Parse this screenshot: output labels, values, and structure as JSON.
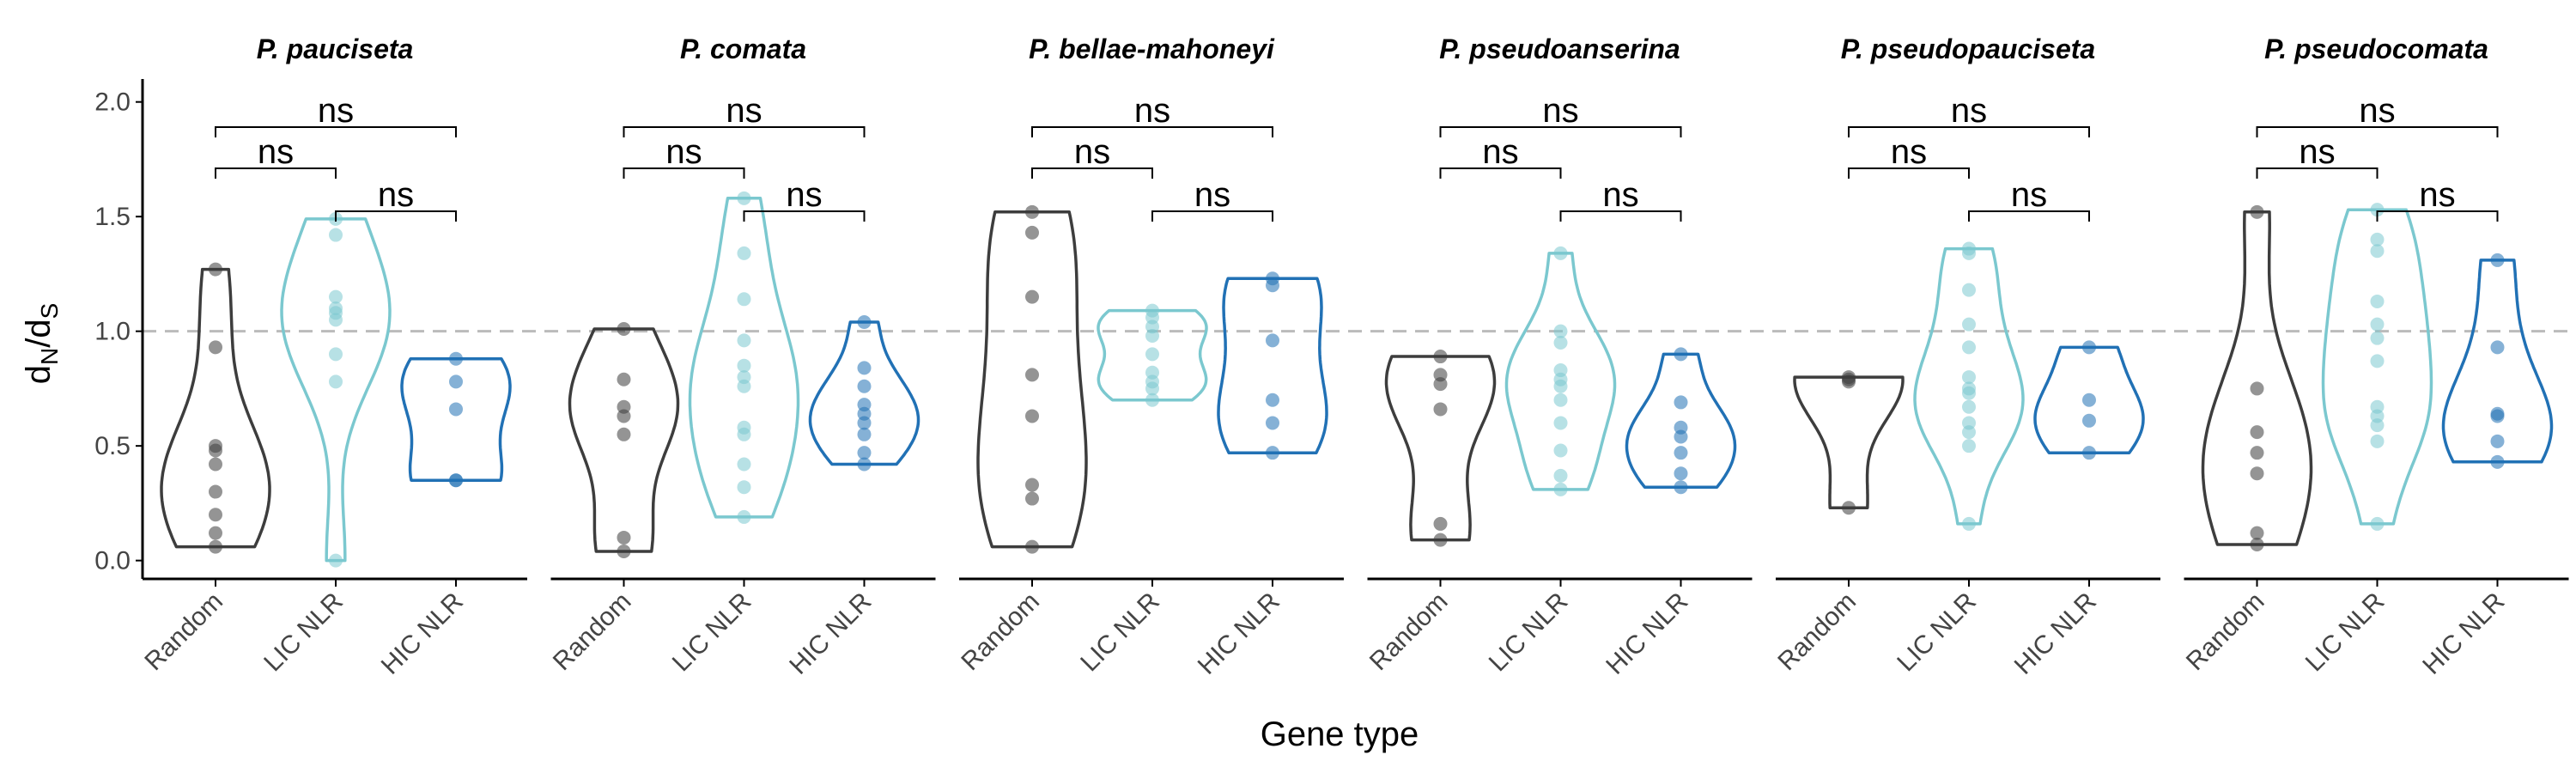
{
  "chart_data": {
    "type": "violin",
    "xlabel": "Gene type",
    "ylabel": "dN/dS",
    "ylabel_main": "d",
    "ylabel_sub1": "N",
    "ylabel_sep": "/d",
    "ylabel_sub2": "S",
    "ylim": [
      -0.08,
      2.1
    ],
    "yticks": [
      0.0,
      0.5,
      1.0,
      1.5,
      2.0
    ],
    "ytick_labels": [
      "0.0",
      "0.5",
      "1.0",
      "1.5",
      "2.0"
    ],
    "reference_line": 1.0,
    "categories": [
      "Random",
      "LIC NLR",
      "HIC NLR"
    ],
    "colors": {
      "Random": "#3d3d3d",
      "LIC NLR": "#7bc8cf",
      "HIC NLR": "#2171b5"
    },
    "grid": false,
    "legend": "none",
    "comparisons": [
      {
        "pair": [
          "Random",
          "LIC NLR"
        ],
        "label": "ns"
      },
      {
        "pair": [
          "LIC NLR",
          "HIC NLR"
        ],
        "label": "ns"
      },
      {
        "pair": [
          "Random",
          "HIC NLR"
        ],
        "label": "ns"
      }
    ],
    "panels": [
      {
        "title": "P. pauciseta",
        "groups": [
          {
            "category": "Random",
            "values": [
              0.06,
              0.12,
              0.2,
              0.3,
              0.42,
              0.48,
              0.5,
              0.93,
              1.27
            ]
          },
          {
            "category": "LIC NLR",
            "values": [
              0.0,
              0.78,
              0.9,
              1.05,
              1.08,
              1.1,
              1.15,
              1.42,
              1.49
            ]
          },
          {
            "category": "HIC NLR",
            "values": [
              0.35,
              0.35,
              0.66,
              0.78,
              0.88
            ]
          }
        ]
      },
      {
        "title": "P. comata",
        "groups": [
          {
            "category": "Random",
            "values": [
              0.04,
              0.1,
              0.55,
              0.63,
              0.67,
              0.79,
              1.01
            ]
          },
          {
            "category": "LIC NLR",
            "values": [
              0.19,
              0.32,
              0.42,
              0.55,
              0.58,
              0.76,
              0.8,
              0.85,
              0.96,
              1.14,
              1.34,
              1.58
            ]
          },
          {
            "category": "HIC NLR",
            "values": [
              0.42,
              0.47,
              0.55,
              0.6,
              0.64,
              0.68,
              0.76,
              0.84,
              1.04
            ]
          }
        ]
      },
      {
        "title": "P. bellae-mahoneyi",
        "groups": [
          {
            "category": "Random",
            "values": [
              0.06,
              0.27,
              0.33,
              0.63,
              0.81,
              1.15,
              1.43,
              1.52
            ]
          },
          {
            "category": "LIC NLR",
            "values": [
              0.7,
              0.75,
              0.78,
              0.82,
              0.9,
              0.98,
              1.02,
              1.06,
              1.09
            ]
          },
          {
            "category": "HIC NLR",
            "values": [
              0.47,
              0.6,
              0.7,
              0.96,
              1.2,
              1.23
            ]
          }
        ]
      },
      {
        "title": "P. pseudoanserina",
        "groups": [
          {
            "category": "Random",
            "values": [
              0.09,
              0.16,
              0.66,
              0.77,
              0.81,
              0.89
            ]
          },
          {
            "category": "LIC NLR",
            "values": [
              0.31,
              0.37,
              0.48,
              0.6,
              0.7,
              0.76,
              0.79,
              0.83,
              0.95,
              1.0,
              1.34
            ]
          },
          {
            "category": "HIC NLR",
            "values": [
              0.32,
              0.38,
              0.47,
              0.54,
              0.58,
              0.69,
              0.9
            ]
          }
        ]
      },
      {
        "title": "P. pseudopauciseta",
        "groups": [
          {
            "category": "Random",
            "values": [
              0.23,
              0.78,
              0.79,
              0.8
            ]
          },
          {
            "category": "LIC NLR",
            "values": [
              0.16,
              0.5,
              0.56,
              0.6,
              0.67,
              0.73,
              0.75,
              0.8,
              0.93,
              1.03,
              1.18,
              1.34,
              1.36
            ]
          },
          {
            "category": "HIC NLR",
            "values": [
              0.47,
              0.61,
              0.7,
              0.93
            ]
          }
        ]
      },
      {
        "title": "P. pseudocomata",
        "groups": [
          {
            "category": "Random",
            "values": [
              0.07,
              0.12,
              0.38,
              0.47,
              0.56,
              0.75,
              1.52
            ]
          },
          {
            "category": "LIC NLR",
            "values": [
              0.16,
              0.52,
              0.59,
              0.63,
              0.67,
              0.87,
              0.97,
              1.03,
              1.13,
              1.35,
              1.4,
              1.53
            ]
          },
          {
            "category": "HIC NLR",
            "values": [
              0.43,
              0.52,
              0.63,
              0.64,
              0.93,
              1.31
            ]
          }
        ]
      }
    ]
  }
}
